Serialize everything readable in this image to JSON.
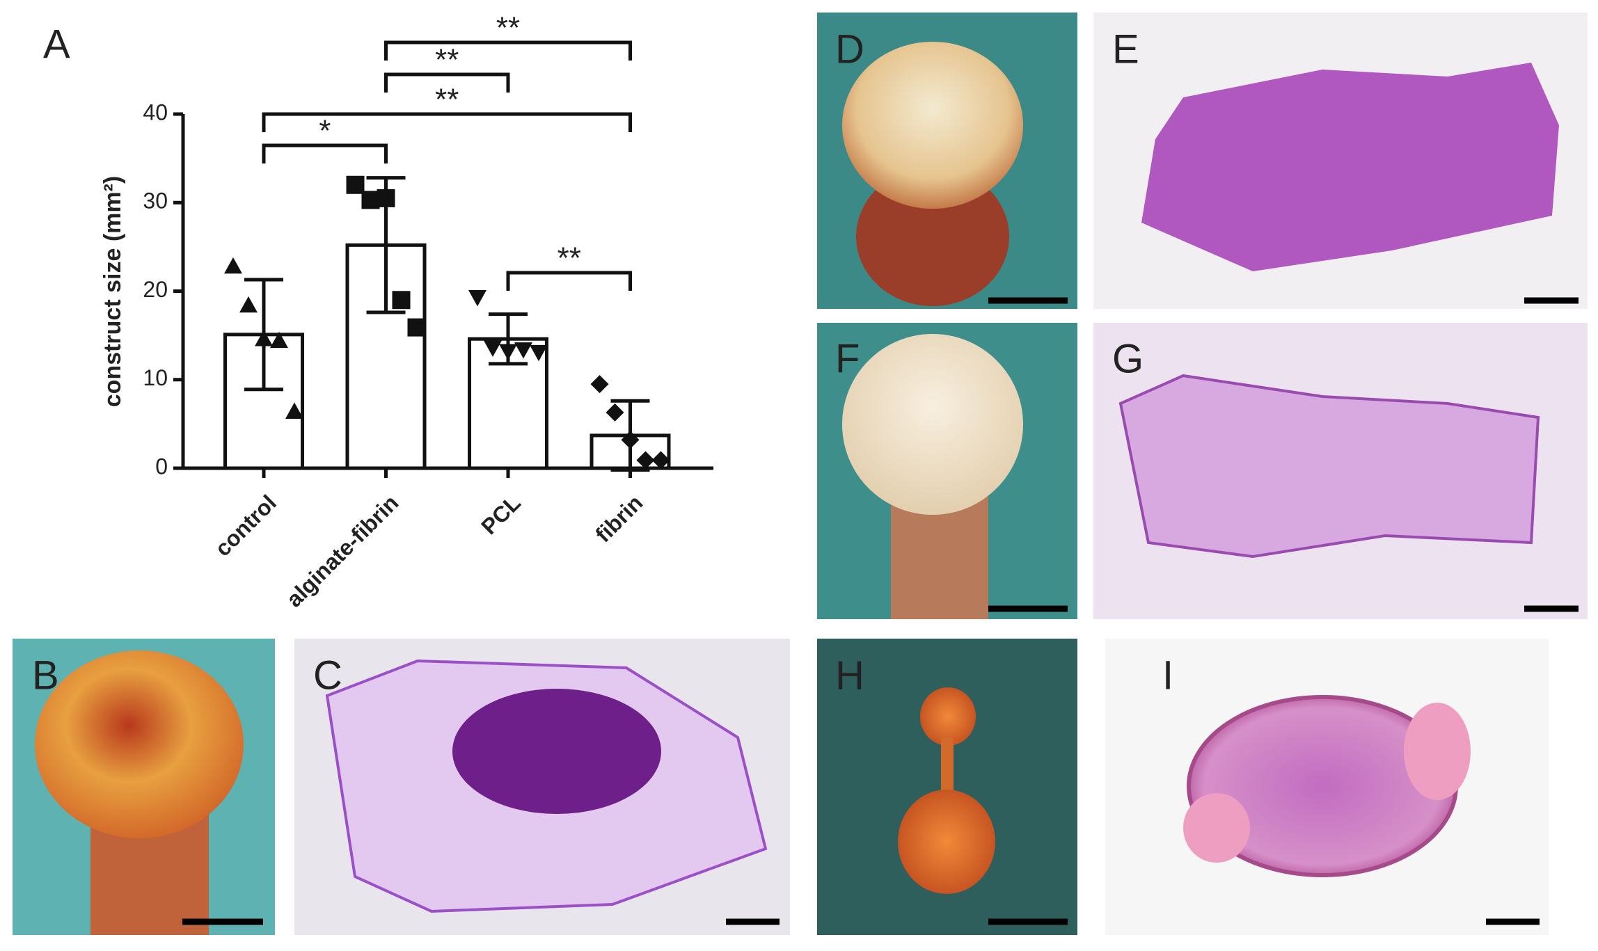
{
  "chart_data": {
    "type": "bar",
    "y_label": "construct size (mm²)",
    "categories": [
      "control",
      "alginate-fibrin",
      "PCL",
      "fibrin"
    ],
    "values": [
      15.1,
      25.2,
      14.6,
      3.7
    ],
    "errors": [
      6.2,
      7.6,
      2.8,
      3.9
    ],
    "points": [
      [
        22.8,
        18.4,
        14.6,
        14.4,
        6.4
      ],
      [
        32.0,
        30.3,
        30.5,
        19.0,
        15.9
      ],
      [
        19.3,
        13.6,
        13.2,
        13.4,
        13.1
      ],
      [
        9.5,
        6.3,
        3.2,
        0.9,
        0.9
      ]
    ],
    "markers": [
      "triangle",
      "square",
      "triangle-down",
      "diamond"
    ],
    "color": "#ffffff",
    "edge_color": "#111111",
    "ylim": [
      0,
      40
    ],
    "yticks": [
      0,
      10,
      20,
      30,
      40
    ],
    "annotations": [
      {
        "from": 0,
        "to": 1,
        "label": "*"
      },
      {
        "from": 0,
        "to": 3,
        "label": "**"
      },
      {
        "from": 1,
        "to": 2,
        "label": "**"
      },
      {
        "from": 1,
        "to": 3,
        "label": "**"
      },
      {
        "from": 2,
        "to": 3,
        "label": "**"
      }
    ]
  },
  "panels": [
    "A",
    "B",
    "C",
    "D",
    "E",
    "F",
    "G",
    "H",
    "I"
  ]
}
